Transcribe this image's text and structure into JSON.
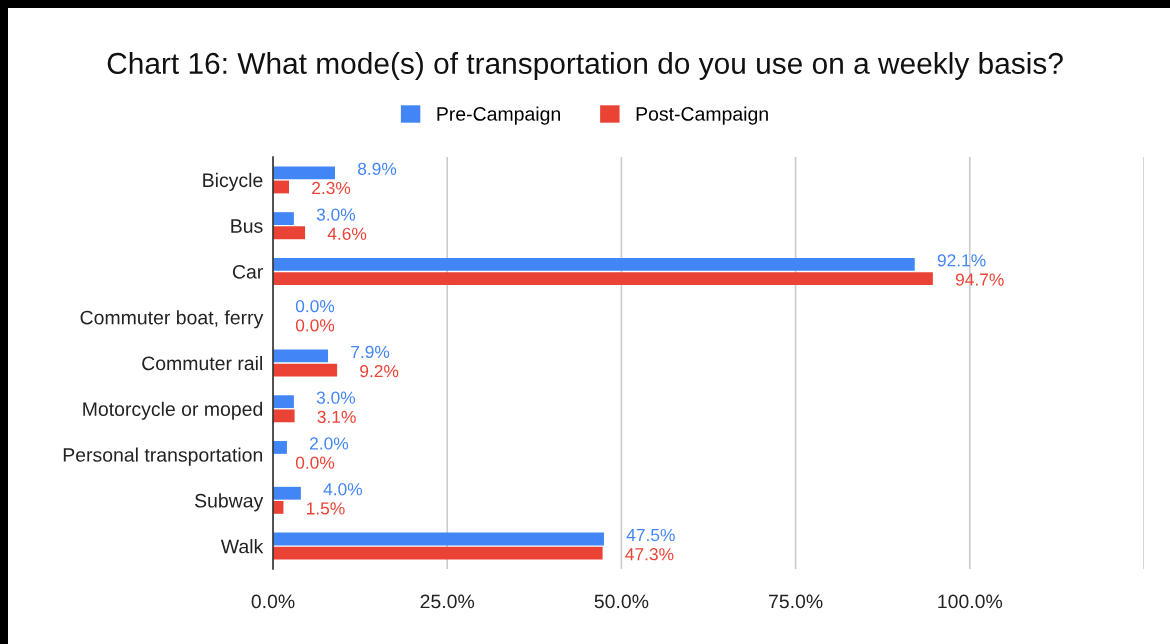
{
  "chart_data": {
    "type": "bar",
    "orientation": "horizontal",
    "title": "Chart 16: What mode(s) of transportation do you use on a weekly basis?",
    "categories": [
      "Bicycle",
      "Bus",
      "Car",
      "Commuter boat, ferry",
      "Commuter rail",
      "Motorcycle or moped",
      "Personal transportation",
      "Subway",
      "Walk"
    ],
    "series": [
      {
        "name": "Pre-Campaign",
        "color": "#4285f4",
        "values": [
          8.9,
          3.0,
          92.1,
          0.0,
          7.9,
          3.0,
          2.0,
          4.0,
          47.5
        ],
        "value_labels": [
          "8.9%",
          "3.0%",
          "92.1%",
          "0.0%",
          "7.9%",
          "3.0%",
          "2.0%",
          "4.0%",
          "47.5%"
        ]
      },
      {
        "name": "Post-Campaign",
        "color": "#ea4335",
        "values": [
          2.3,
          4.6,
          94.7,
          0.0,
          9.2,
          3.1,
          0.0,
          1.5,
          47.3
        ],
        "value_labels": [
          "2.3%",
          "4.6%",
          "94.7%",
          "0.0%",
          "9.2%",
          "3.1%",
          "0.0%",
          "1.5%",
          "47.3%"
        ]
      }
    ],
    "xlim": [
      0,
      125
    ],
    "xticks": [
      {
        "value": 0,
        "label": "0.0%"
      },
      {
        "value": 25,
        "label": "25.0%"
      },
      {
        "value": 50,
        "label": "50.0%"
      },
      {
        "value": 75,
        "label": "75.0%"
      },
      {
        "value": 100,
        "label": "100.0%"
      },
      {
        "value": 125,
        "label": null
      }
    ],
    "grid": "x",
    "legend": "top"
  }
}
